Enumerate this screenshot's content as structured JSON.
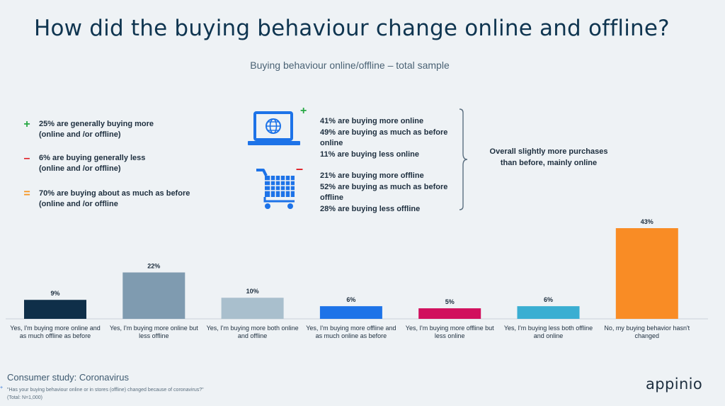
{
  "title": "How did the buying behaviour change online and offline?",
  "subtitle": "Buying behaviour online/offline – total sample",
  "summary": [
    {
      "symbol": "+",
      "color": "#27a844",
      "line1": "25% are generally buying more",
      "line2": "(online and /or offline)"
    },
    {
      "symbol": "–",
      "color": "#e0191f",
      "line1": "6% are buying generally less",
      "line2": "(online and /or offline)"
    },
    {
      "symbol": "=",
      "color": "#f7941d",
      "line1": "70% are buying about as much as before",
      "line2": "(online and /or offline"
    }
  ],
  "online": {
    "icon": "laptop-globe-icon",
    "badge": "+",
    "badge_color": "#27a844",
    "lines": [
      "41% are buying more online",
      "49% are buying as much as before",
      "online",
      "11% are buying less online"
    ]
  },
  "offline": {
    "icon": "shopping-cart-icon",
    "badge": "–",
    "badge_color": "#e0191f",
    "lines": [
      "21% are buying more offline",
      "52% are buying as much as before",
      "offline",
      "28% are buying less offline"
    ]
  },
  "conclusion": {
    "line1": "Overall slightly more purchases",
    "line2": "than before, mainly online"
  },
  "chart_data": {
    "type": "bar",
    "categories": [
      [
        "Yes, I'm buying more online and",
        "as much offline as before"
      ],
      [
        "Yes, I'm buying more online but",
        "less offline"
      ],
      [
        "Yes, I'm buying more both online",
        "and offline"
      ],
      [
        "Yes, I'm buying more offline and",
        "as much online as before"
      ],
      [
        "Yes, I'm buying more offline but",
        "less online"
      ],
      [
        "Yes, I'm buying less both offline",
        "and online"
      ],
      [
        "No, my buying behavior hasn't",
        "changed"
      ]
    ],
    "values": [
      9,
      22,
      10,
      6,
      5,
      6,
      43
    ],
    "value_labels": [
      "9%",
      "22%",
      "10%",
      "6%",
      "5%",
      "6%",
      "43%"
    ],
    "colors": [
      "#0f2f49",
      "#7f9bb0",
      "#a9bfcd",
      "#1d73e8",
      "#d10f5d",
      "#3aaed2",
      "#f98c25"
    ],
    "ylim": [
      0,
      43
    ],
    "grid": false
  },
  "footer": {
    "study": "Consumer study: Coronavirus",
    "question": "\"Has your buying behaviour online or in stores (offline) changed because of coronavirus?\"",
    "total": "(Total: N=1,000)",
    "plus": "+"
  },
  "brand": "appinio",
  "colors": {
    "title": "#0f3550",
    "icon_blue": "#1d73e8",
    "background": "#eef2f5"
  }
}
